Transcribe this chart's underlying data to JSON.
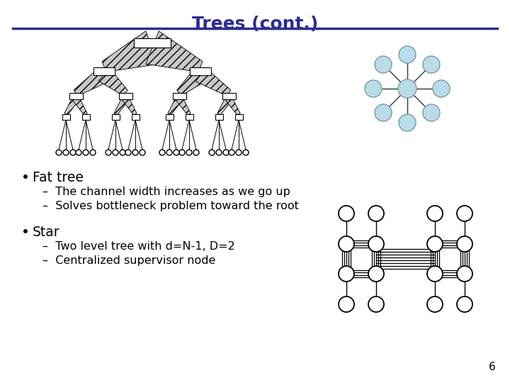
{
  "title": "Trees (cont.)",
  "title_color": "#2d2d8f",
  "title_fontsize": 18,
  "title_fontweight": "bold",
  "line_color": "#2d2d8f",
  "background_color": "#ffffff",
  "page_number": "6",
  "bullet_items": [
    {
      "bullet": "Fat tree",
      "sub_items": [
        "The channel width increases as we go up",
        "Solves bottleneck problem toward the root"
      ]
    },
    {
      "bullet": "Star",
      "sub_items": [
        "Two level tree with d=N-1, D=2",
        "Centralized supervisor node"
      ]
    }
  ]
}
